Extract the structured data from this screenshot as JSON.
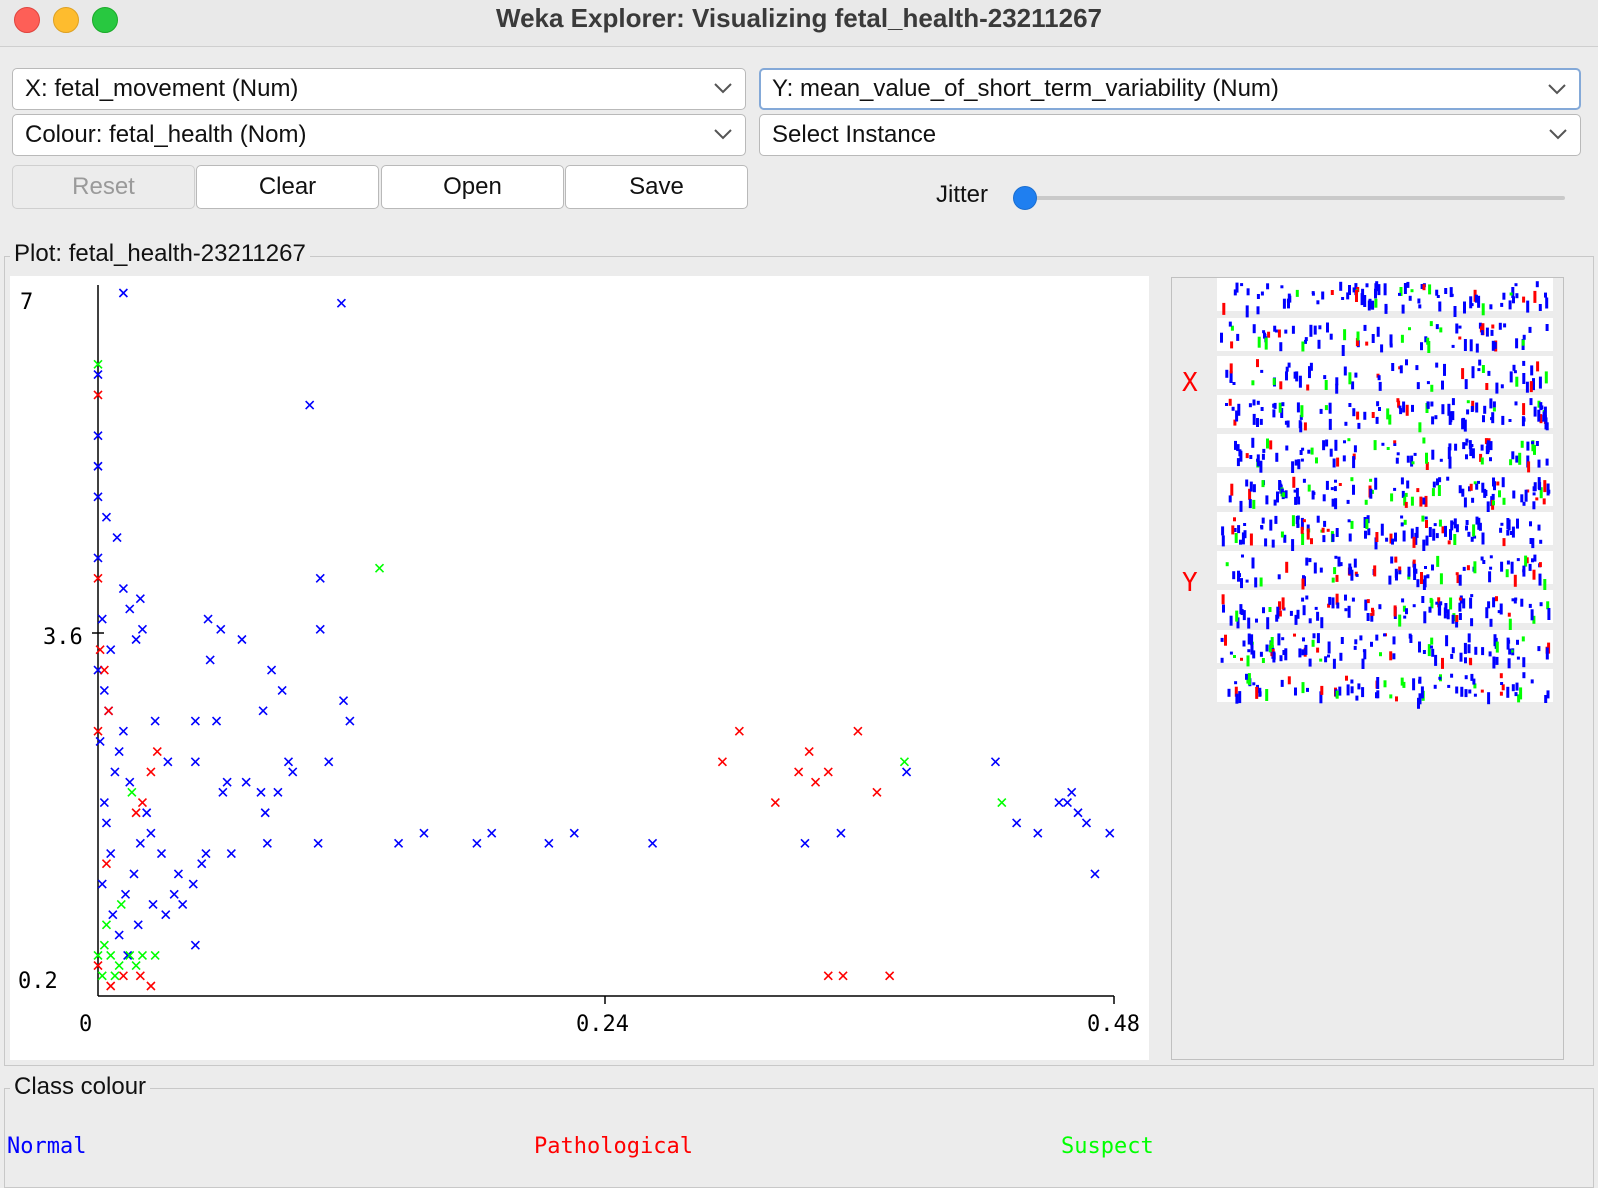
{
  "window": {
    "title": "Weka Explorer: Visualizing fetal_health-23211267"
  },
  "controls": {
    "x_axis": "X: fetal_movement (Num)",
    "y_axis": "Y: mean_value_of_short_term_variability (Num)",
    "colour": "Colour: fetal_health (Nom)",
    "select_instance": "Select Instance",
    "reset": "Reset",
    "clear": "Clear",
    "open": "Open",
    "save": "Save",
    "jitter_label": "Jitter",
    "jitter_value": 0
  },
  "plot": {
    "title": "Plot: fetal_health-23211267",
    "x_ticks": [
      "0",
      "0.24",
      "0.48"
    ],
    "y_ticks": [
      "7",
      "3.6",
      "0.2"
    ]
  },
  "matrix": {
    "x_marker": "X",
    "y_marker": "Y"
  },
  "legend": {
    "title": "Class colour",
    "classes": [
      {
        "name": "Normal",
        "color": "#0000ff"
      },
      {
        "name": "Pathological",
        "color": "#ff0000"
      },
      {
        "name": "Suspect",
        "color": "#00ff00"
      }
    ]
  },
  "chart_data": {
    "type": "scatter",
    "xlabel": "fetal_movement",
    "ylabel": "mean_value_of_short_term_variability",
    "xlim": [
      0,
      0.48
    ],
    "ylim": [
      0.2,
      7
    ],
    "series": [
      {
        "name": "Normal",
        "color": "#0000ff",
        "points": [
          [
            0.012,
            7.0
          ],
          [
            0.115,
            6.9
          ],
          [
            0.1,
            5.9
          ],
          [
            0.0,
            5.3
          ],
          [
            0.0,
            5.0
          ],
          [
            0.009,
            4.6
          ],
          [
            0.0,
            4.4
          ],
          [
            0.012,
            4.1
          ],
          [
            0.02,
            4.0
          ],
          [
            0.021,
            3.7
          ],
          [
            0.015,
            3.9
          ],
          [
            0.105,
            4.2
          ],
          [
            0.018,
            3.6
          ],
          [
            0.058,
            3.7
          ],
          [
            0.052,
            3.8
          ],
          [
            0.053,
            3.4
          ],
          [
            0.068,
            3.6
          ],
          [
            0.105,
            3.7
          ],
          [
            0.082,
            3.3
          ],
          [
            0.087,
            3.1
          ],
          [
            0.116,
            3.0
          ],
          [
            0.078,
            2.9
          ],
          [
            0.109,
            2.4
          ],
          [
            0.046,
            2.8
          ],
          [
            0.056,
            2.8
          ],
          [
            0.09,
            2.4
          ],
          [
            0.085,
            2.1
          ],
          [
            0.07,
            2.2
          ],
          [
            0.077,
            2.1
          ],
          [
            0.059,
            2.1
          ],
          [
            0.119,
            2.8
          ],
          [
            0.027,
            2.8
          ],
          [
            0.033,
            2.4
          ],
          [
            0.046,
            2.4
          ],
          [
            0.061,
            2.2
          ],
          [
            0.079,
            1.9
          ],
          [
            0.092,
            2.3
          ],
          [
            0.142,
            1.6
          ],
          [
            0.179,
            1.6
          ],
          [
            0.154,
            1.7
          ],
          [
            0.186,
            1.7
          ],
          [
            0.213,
            1.6
          ],
          [
            0.225,
            1.7
          ],
          [
            0.262,
            1.6
          ],
          [
            0.334,
            1.6
          ],
          [
            0.351,
            1.7
          ],
          [
            0.444,
            1.7
          ],
          [
            0.382,
            2.3
          ],
          [
            0.454,
            2.0
          ],
          [
            0.458,
            2.0
          ],
          [
            0.434,
            1.8
          ],
          [
            0.463,
            1.9
          ],
          [
            0.478,
            1.7
          ],
          [
            0.467,
            1.8
          ],
          [
            0.471,
            1.3
          ],
          [
            0.424,
            2.4
          ],
          [
            0.46,
            2.1
          ],
          [
            0.104,
            1.6
          ],
          [
            0.08,
            1.6
          ],
          [
            0.051,
            1.5
          ],
          [
            0.063,
            1.5
          ],
          [
            0.049,
            1.4
          ],
          [
            0.045,
            1.2
          ],
          [
            0.04,
            1.0
          ],
          [
            0.046,
            0.6
          ],
          [
            0.023,
            1.9
          ],
          [
            0.03,
            1.5
          ],
          [
            0.038,
            1.3
          ],
          [
            0.036,
            1.1
          ],
          [
            0.032,
            0.9
          ],
          [
            0.015,
            2.2
          ],
          [
            0.01,
            2.5
          ],
          [
            0.005,
            2.9
          ],
          [
            0.003,
            3.1
          ],
          [
            0.001,
            2.6
          ],
          [
            0.004,
            1.8
          ],
          [
            0.006,
            1.5
          ],
          [
            0.002,
            1.2
          ],
          [
            0.007,
            0.9
          ],
          [
            0.01,
            0.7
          ],
          [
            0.013,
            1.1
          ],
          [
            0.017,
            1.3
          ],
          [
            0.02,
            1.6
          ],
          [
            0.025,
            1.7
          ],
          [
            0.003,
            2.0
          ],
          [
            0.008,
            2.3
          ],
          [
            0.012,
            2.7
          ],
          [
            0.0,
            3.3
          ],
          [
            0.006,
            3.5
          ],
          [
            0.004,
            4.8
          ],
          [
            0.002,
            3.8
          ],
          [
            0.014,
            0.5
          ],
          [
            0.019,
            0.8
          ],
          [
            0.026,
            1.0
          ],
          [
            0.0,
            6.2
          ],
          [
            0.0,
            5.6
          ]
        ]
      },
      {
        "name": "Pathological",
        "color": "#ff0000",
        "points": [
          [
            0.0,
            6.0
          ],
          [
            0.0,
            4.2
          ],
          [
            0.001,
            3.5
          ],
          [
            0.003,
            3.3
          ],
          [
            0.005,
            2.9
          ],
          [
            0.0,
            2.7
          ],
          [
            0.028,
            2.5
          ],
          [
            0.025,
            2.3
          ],
          [
            0.021,
            2.0
          ],
          [
            0.018,
            1.9
          ],
          [
            0.004,
            1.4
          ],
          [
            0.0,
            0.4
          ],
          [
            0.012,
            0.3
          ],
          [
            0.02,
            0.3
          ],
          [
            0.025,
            0.2
          ],
          [
            0.006,
            0.2
          ],
          [
            0.303,
            2.7
          ],
          [
            0.295,
            2.4
          ],
          [
            0.336,
            2.5
          ],
          [
            0.32,
            2.0
          ],
          [
            0.345,
            2.3
          ],
          [
            0.331,
            2.3
          ],
          [
            0.339,
            2.2
          ],
          [
            0.359,
            2.7
          ],
          [
            0.368,
            2.1
          ],
          [
            0.345,
            0.3
          ],
          [
            0.352,
            0.3
          ],
          [
            0.374,
            0.3
          ]
        ]
      },
      {
        "name": "Suspect",
        "color": "#00ff00",
        "points": [
          [
            0.0,
            6.3
          ],
          [
            0.133,
            4.3
          ],
          [
            0.381,
            2.4
          ],
          [
            0.427,
            2.0
          ],
          [
            0.016,
            2.1
          ],
          [
            0.011,
            1.0
          ],
          [
            0.003,
            0.6
          ],
          [
            0.006,
            0.5
          ],
          [
            0.01,
            0.4
          ],
          [
            0.015,
            0.5
          ],
          [
            0.021,
            0.5
          ],
          [
            0.027,
            0.5
          ],
          [
            0.002,
            0.3
          ],
          [
            0.008,
            0.3
          ],
          [
            0.004,
            0.8
          ],
          [
            0.018,
            0.4
          ],
          [
            0.0,
            0.5
          ]
        ]
      }
    ]
  }
}
